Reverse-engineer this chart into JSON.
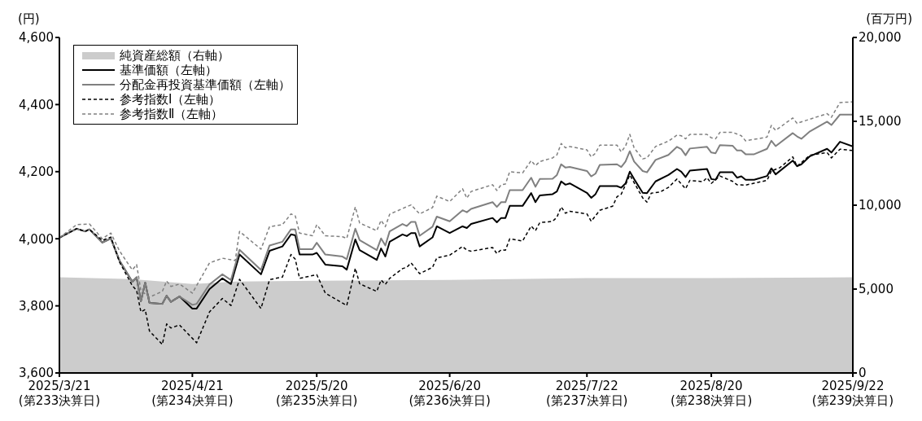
{
  "chart_data": {
    "type": "line",
    "ylabel": "(円)",
    "y2label": "(百万円)",
    "xlim": [
      "2025-03-21",
      "2025-09-22"
    ],
    "xticks": [
      {
        "value": "2025-03-21",
        "label": "2025/3/21\n(第233決算日)"
      },
      {
        "value": "2025-04-21",
        "label": "2025/4/21\n(第234決算日)"
      },
      {
        "value": "2025-05-20",
        "label": "2025/5/20\n(第235決算日)"
      },
      {
        "value": "2025-06-20",
        "label": "2025/6/20\n(第236決算日)"
      },
      {
        "value": "2025-07-22",
        "label": "2025/7/22\n(第237決算日)"
      },
      {
        "value": "2025-08-20",
        "label": "2025/8/20\n(第238決算日)"
      },
      {
        "value": "2025-09-22",
        "label": "2025/9/22\n(第239決算日)"
      }
    ],
    "ylim": [
      3600,
      4600
    ],
    "yticks": [
      {
        "value": 3600,
        "label": "3,600"
      },
      {
        "value": 3800,
        "label": "3,800"
      },
      {
        "value": 4000,
        "label": "4,000"
      },
      {
        "value": 4200,
        "label": "4,200"
      },
      {
        "value": 4400,
        "label": "4,400"
      },
      {
        "value": 4600,
        "label": "4,600"
      }
    ],
    "y2lim": [
      0,
      20000
    ],
    "y2ticks": [
      0,
      {
        "value": 5000,
        "label": "5,000"
      },
      {
        "value": 10000,
        "label": "10,000"
      },
      {
        "value": 15000,
        "label": "15,000"
      },
      {
        "value": 20000,
        "label": "20,000"
      }
    ],
    "legend": "top left",
    "x": [
      "2025-03-21",
      "2025-03-25",
      "2025-03-27",
      "2025-03-28",
      "2025-03-31",
      "2025-04-02",
      "2025-04-04",
      "2025-04-07",
      "2025-04-08",
      "2025-04-09",
      "2025-04-10",
      "2025-04-11",
      "2025-04-14",
      "2025-04-15",
      "2025-04-16",
      "2025-04-18",
      "2025-04-21",
      "2025-04-22",
      "2025-04-25",
      "2025-04-28",
      "2025-04-30",
      "2025-05-02",
      "2025-05-07",
      "2025-05-09",
      "2025-05-12",
      "2025-05-14",
      "2025-05-15",
      "2025-05-16",
      "2025-05-19",
      "2025-05-20",
      "2025-05-22",
      "2025-05-26",
      "2025-05-27",
      "2025-05-29",
      "2025-05-30",
      "2025-06-03",
      "2025-06-04",
      "2025-06-05",
      "2025-06-06",
      "2025-06-09",
      "2025-06-10",
      "2025-06-11",
      "2025-06-12",
      "2025-06-13",
      "2025-06-16",
      "2025-06-17",
      "2025-06-20",
      "2025-06-23",
      "2025-06-24",
      "2025-06-25",
      "2025-06-30",
      "2025-07-01",
      "2025-07-02",
      "2025-07-03",
      "2025-07-04",
      "2025-07-07",
      "2025-07-09",
      "2025-07-10",
      "2025-07-11",
      "2025-07-14",
      "2025-07-15",
      "2025-07-16",
      "2025-07-17",
      "2025-07-18",
      "2025-07-22",
      "2025-07-23",
      "2025-07-24",
      "2025-07-25",
      "2025-07-29",
      "2025-07-30",
      "2025-07-31",
      "2025-08-01",
      "2025-08-02",
      "2025-08-04",
      "2025-08-05",
      "2025-08-07",
      "2025-08-10",
      "2025-08-12",
      "2025-08-13",
      "2025-08-14",
      "2025-08-15",
      "2025-08-19",
      "2025-08-20",
      "2025-08-21",
      "2025-08-22",
      "2025-08-25",
      "2025-08-26",
      "2025-08-27",
      "2025-08-28",
      "2025-08-30",
      "2025-09-02",
      "2025-09-03",
      "2025-09-04",
      "2025-09-08",
      "2025-09-09",
      "2025-09-10",
      "2025-09-12",
      "2025-09-16",
      "2025-09-17",
      "2025-09-19",
      "2025-09-22"
    ],
    "series": [
      {
        "name": "純資産総額（右軸）",
        "type": "area",
        "axis": "y2",
        "color": "#cccccc",
        "x": [
          "2025-03-21",
          "2025-04-07",
          "2025-04-21",
          "2025-05-01",
          "2025-05-20",
          "2025-06-20",
          "2025-07-22",
          "2025-08-20",
          "2025-09-22"
        ],
        "values": [
          5700,
          5600,
          5300,
          5450,
          5500,
          5550,
          5650,
          5650,
          5700
        ]
      },
      {
        "name": "基準価額（左軸）",
        "color": "#000000",
        "line_style": "solid",
        "values": [
          4003,
          4030,
          4022,
          4028,
          3989,
          4001,
          3935,
          3872,
          3885,
          3814,
          3869,
          3809,
          3806,
          3830,
          3812,
          3828,
          3792,
          3792,
          3850,
          3882,
          3865,
          3953,
          3894,
          3964,
          3977,
          4013,
          4010,
          3953,
          3953,
          3958,
          3923,
          3918,
          3908,
          3998,
          3966,
          3937,
          3971,
          3947,
          3991,
          4013,
          4008,
          4017,
          4017,
          3977,
          4004,
          4037,
          4017,
          4037,
          4032,
          4044,
          4062,
          4049,
          4062,
          4062,
          4098,
          4098,
          4136,
          4109,
          4129,
          4133,
          4141,
          4171,
          4161,
          4165,
          4137,
          4122,
          4133,
          4157,
          4157,
          4152,
          4165,
          4200,
          4178,
          4137,
          4136,
          4171,
          4190,
          4208,
          4200,
          4184,
          4203,
          4208,
          4178,
          4176,
          4198,
          4198,
          4182,
          4186,
          4176,
          4176,
          4187,
          4210,
          4192,
          4233,
          4216,
          4222,
          4246,
          4268,
          4257,
          4289,
          4275
        ]
      },
      {
        "name": "分配金再投資基準価額（左軸）",
        "color": "#808080",
        "line_style": "solid",
        "values": [
          4003,
          4030,
          4022,
          4028,
          3989,
          4001,
          3935,
          3872,
          3885,
          3814,
          3869,
          3809,
          3806,
          3830,
          3812,
          3828,
          3803,
          3806,
          3864,
          3894,
          3877,
          3967,
          3907,
          3980,
          3991,
          4028,
          4028,
          3969,
          3969,
          3988,
          3953,
          3947,
          3939,
          4030,
          3996,
          3966,
          4001,
          3980,
          4022,
          4044,
          4038,
          4050,
          4050,
          4009,
          4036,
          4066,
          4052,
          4085,
          4079,
          4089,
          4109,
          4095,
          4109,
          4109,
          4145,
          4145,
          4182,
          4155,
          4178,
          4179,
          4190,
          4222,
          4212,
          4214,
          4202,
          4186,
          4194,
          4220,
          4222,
          4214,
          4230,
          4261,
          4230,
          4202,
          4198,
          4235,
          4250,
          4274,
          4267,
          4249,
          4269,
          4274,
          4257,
          4255,
          4279,
          4277,
          4263,
          4263,
          4252,
          4252,
          4268,
          4292,
          4276,
          4315,
          4305,
          4298,
          4320,
          4349,
          4339,
          4370,
          4370
        ]
      },
      {
        "name": "参考指数Ⅰ（左軸）",
        "color": "#000000",
        "line_style": "dashed",
        "x": [
          "2025-03-21",
          "2025-03-25",
          "2025-03-27",
          "2025-03-28",
          "2025-03-31",
          "2025-04-02",
          "2025-04-04",
          "2025-04-07",
          "2025-04-08",
          "2025-04-09",
          "2025-04-10",
          "2025-04-11",
          "2025-04-14",
          "2025-04-15",
          "2025-04-16",
          "2025-04-18",
          "2025-04-22",
          "2025-04-25",
          "2025-04-28",
          "2025-04-30",
          "2025-05-02",
          "2025-05-07",
          "2025-05-09",
          "2025-05-12",
          "2025-05-14",
          "2025-05-15",
          "2025-05-16",
          "2025-05-20",
          "2025-05-22",
          "2025-05-27",
          "2025-05-29",
          "2025-05-30",
          "2025-06-03",
          "2025-06-04",
          "2025-06-05",
          "2025-06-06",
          "2025-06-09",
          "2025-06-10",
          "2025-06-11",
          "2025-06-13",
          "2025-06-16",
          "2025-06-17",
          "2025-06-20",
          "2025-06-23",
          "2025-06-24",
          "2025-06-25",
          "2025-06-30",
          "2025-07-01",
          "2025-07-02",
          "2025-07-03",
          "2025-07-04",
          "2025-07-07",
          "2025-07-09",
          "2025-07-10",
          "2025-07-11",
          "2025-07-14",
          "2025-07-15",
          "2025-07-16",
          "2025-07-17",
          "2025-07-18",
          "2025-07-22",
          "2025-07-23",
          "2025-07-25",
          "2025-07-28",
          "2025-07-29",
          "2025-07-30",
          "2025-07-31",
          "2025-08-01",
          "2025-08-04",
          "2025-08-05",
          "2025-08-06",
          "2025-08-08",
          "2025-08-10",
          "2025-08-12",
          "2025-08-14",
          "2025-08-15",
          "2025-08-18",
          "2025-08-19",
          "2025-08-20",
          "2025-08-22",
          "2025-08-25",
          "2025-08-26",
          "2025-08-28",
          "2025-09-02",
          "2025-09-03",
          "2025-09-05",
          "2025-09-08",
          "2025-09-09",
          "2025-09-12",
          "2025-09-16",
          "2025-09-17",
          "2025-09-19",
          "2025-09-22"
        ],
        "values": [
          4003,
          4030,
          4022,
          4028,
          3995,
          4005,
          3931,
          3860,
          3846,
          3782,
          3789,
          3725,
          3685,
          3746,
          3734,
          3743,
          3690,
          3782,
          3822,
          3801,
          3879,
          3792,
          3878,
          3886,
          3953,
          3939,
          3882,
          3893,
          3838,
          3801,
          3912,
          3866,
          3843,
          3877,
          3864,
          3882,
          3911,
          3915,
          3928,
          3896,
          3915,
          3943,
          3951,
          3977,
          3966,
          3963,
          3974,
          3956,
          3967,
          3966,
          4000,
          3993,
          4038,
          4024,
          4048,
          4052,
          4064,
          4095,
          4076,
          4082,
          4074,
          4052,
          4085,
          4097,
          4125,
          4133,
          4161,
          4190,
          4122,
          4109,
          4136,
          4139,
          4153,
          4178,
          4149,
          4174,
          4170,
          4182,
          4165,
          4187,
          4171,
          4161,
          4160,
          4174,
          4202,
          4212,
          4244,
          4216,
          4249,
          4257,
          4241,
          4267,
          4263
        ]
      },
      {
        "name": "参考指数Ⅱ（左軸）",
        "color": "#808080",
        "line_style": "dashed",
        "x": [
          "2025-03-21",
          "2025-03-25",
          "2025-03-28",
          "2025-03-31",
          "2025-04-02",
          "2025-04-04",
          "2025-04-07",
          "2025-04-08",
          "2025-04-09",
          "2025-04-11",
          "2025-04-14",
          "2025-04-15",
          "2025-04-16",
          "2025-04-18",
          "2025-04-21",
          "2025-04-25",
          "2025-04-28",
          "2025-05-01",
          "2025-05-02",
          "2025-05-07",
          "2025-05-09",
          "2025-05-12",
          "2025-05-14",
          "2025-05-15",
          "2025-05-16",
          "2025-05-19",
          "2025-05-20",
          "2025-05-22",
          "2025-05-26",
          "2025-05-27",
          "2025-05-29",
          "2025-05-30",
          "2025-06-03",
          "2025-06-04",
          "2025-06-05",
          "2025-06-06",
          "2025-06-09",
          "2025-06-11",
          "2025-06-13",
          "2025-06-16",
          "2025-06-17",
          "2025-06-20",
          "2025-06-23",
          "2025-06-24",
          "2025-06-25",
          "2025-06-30",
          "2025-07-01",
          "2025-07-02",
          "2025-07-03",
          "2025-07-04",
          "2025-07-07",
          "2025-07-09",
          "2025-07-10",
          "2025-07-11",
          "2025-07-14",
          "2025-07-15",
          "2025-07-16",
          "2025-07-17",
          "2025-07-18",
          "2025-07-22",
          "2025-07-23",
          "2025-07-24",
          "2025-07-25",
          "2025-07-29",
          "2025-07-30",
          "2025-07-31",
          "2025-08-01",
          "2025-08-02",
          "2025-08-04",
          "2025-08-05",
          "2025-08-07",
          "2025-08-10",
          "2025-08-12",
          "2025-08-13",
          "2025-08-14",
          "2025-08-15",
          "2025-08-19",
          "2025-08-20",
          "2025-08-21",
          "2025-08-22",
          "2025-08-25",
          "2025-08-27",
          "2025-08-28",
          "2025-09-02",
          "2025-09-03",
          "2025-09-04",
          "2025-09-08",
          "2025-09-09",
          "2025-09-16",
          "2025-09-17",
          "2025-09-19",
          "2025-09-22"
        ],
        "values": [
          4003,
          4042,
          4044,
          4000,
          4017,
          3964,
          3907,
          3923,
          3846,
          3826,
          3843,
          3874,
          3858,
          3865,
          3838,
          3928,
          3942,
          3935,
          4022,
          3969,
          4036,
          4042,
          4074,
          4068,
          4017,
          4009,
          4042,
          4009,
          4006,
          4001,
          4095,
          4047,
          4024,
          4055,
          4036,
          4073,
          4090,
          4101,
          4074,
          4093,
          4127,
          4111,
          4149,
          4121,
          4141,
          4161,
          4144,
          4161,
          4163,
          4200,
          4196,
          4233,
          4218,
          4230,
          4241,
          4250,
          4284,
          4271,
          4275,
          4265,
          4244,
          4255,
          4279,
          4279,
          4259,
          4276,
          4311,
          4271,
          4238,
          4241,
          4275,
          4291,
          4309,
          4307,
          4298,
          4311,
          4311,
          4301,
          4298,
          4317,
          4317,
          4307,
          4292,
          4303,
          4338,
          4323,
          4360,
          4344,
          4373,
          4362,
          4406,
          4408
        ]
      }
    ]
  }
}
